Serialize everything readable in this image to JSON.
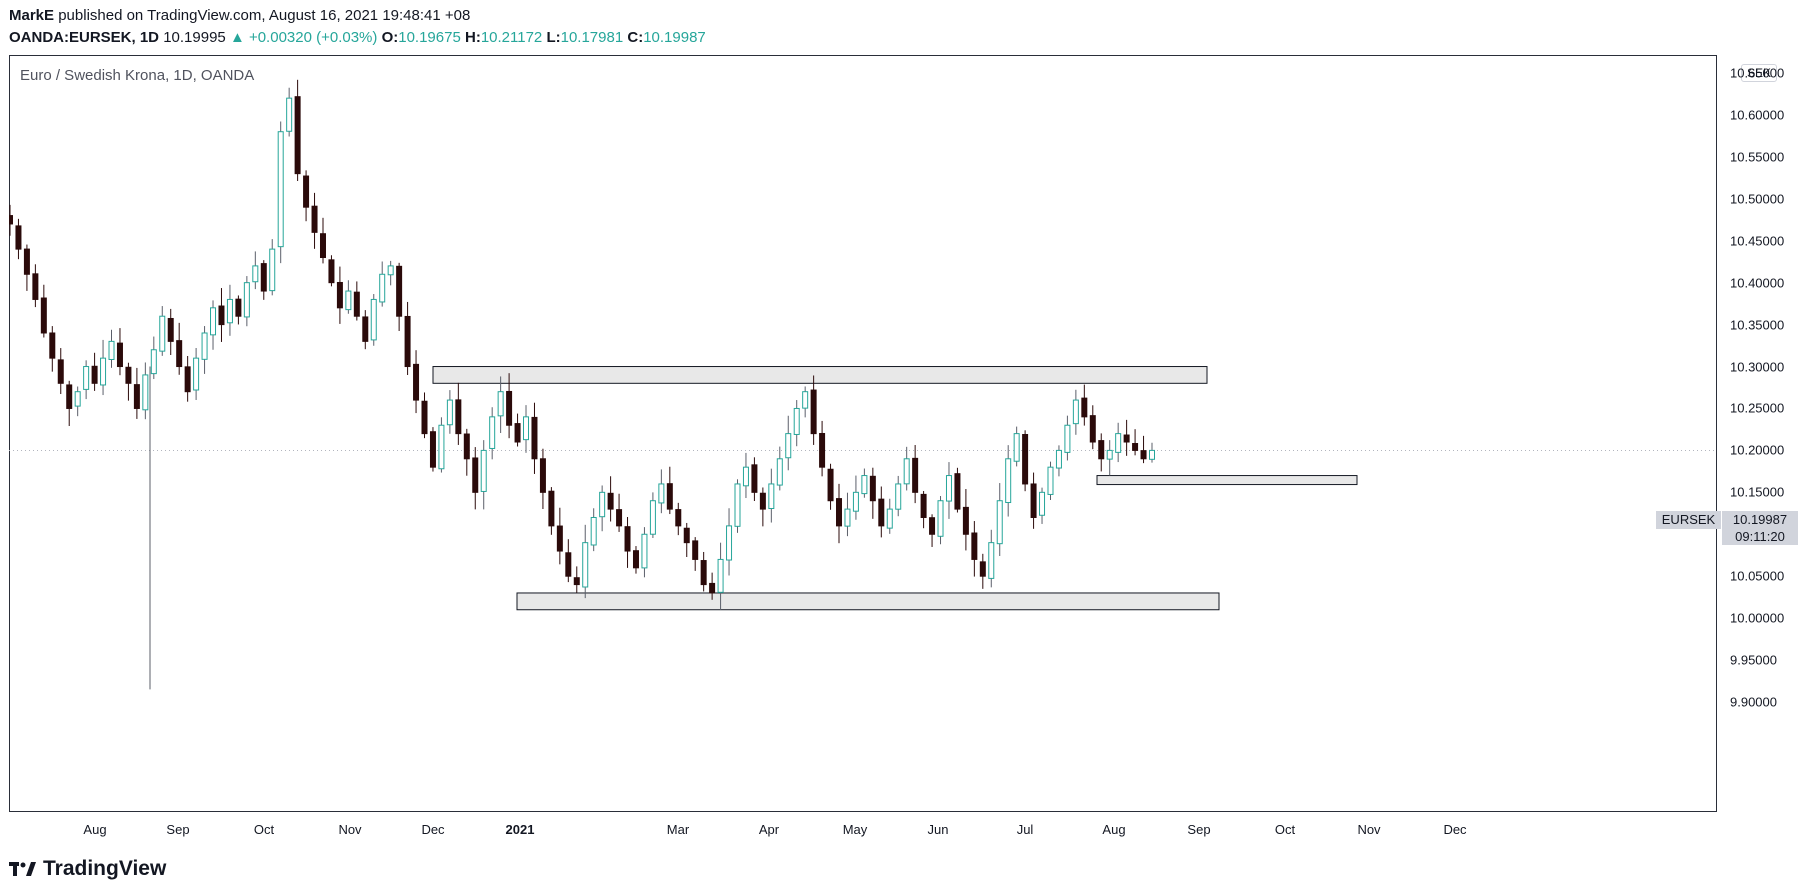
{
  "header": {
    "author": "MarkE",
    "published": "published on TradingView.com, August 16, 2021 19:48:41 +08",
    "symbol": "OANDA:EURSEK, 1D",
    "price": "10.19995",
    "change": "▲ +0.00320 (+0.03%)",
    "o_label": "O:",
    "o_val": "10.19675",
    "h_label": "H:",
    "h_val": "10.21172",
    "l_label": "L:",
    "l_val": "10.17981",
    "c_label": "C:",
    "c_val": "10.19987"
  },
  "chart_title": "Euro / Swedish Krona, 1D, OANDA",
  "currency_badge": "SEK",
  "last_price": {
    "symbol": "EURSEK",
    "value": "10.19987",
    "countdown": "09:11:20"
  },
  "brand": "TradingView",
  "colors": {
    "up": "#26a69a",
    "down": "#2b0a0a",
    "body_up": "#ffffff",
    "zone_fill": "#e8e8e8",
    "zone_border": "#131722"
  },
  "chart_data": {
    "type": "candlestick",
    "title": "Euro / Swedish Krona, 1D, OANDA",
    "ylim": [
      9.9,
      10.65
    ],
    "y_ticks": [
      "10.65000",
      "10.60000",
      "10.55000",
      "10.50000",
      "10.45000",
      "10.40000",
      "10.35000",
      "10.30000",
      "10.25000",
      "10.20000",
      "10.15000",
      "10.10000",
      "10.05000",
      "10.00000",
      "9.95000",
      "9.90000"
    ],
    "x_ticks": [
      {
        "label": "Aug",
        "bold": false
      },
      {
        "label": "Sep",
        "bold": false
      },
      {
        "label": "Oct",
        "bold": false
      },
      {
        "label": "Nov",
        "bold": false
      },
      {
        "label": "Dec",
        "bold": false
      },
      {
        "label": "2021",
        "bold": true
      },
      {
        "label": "Mar",
        "bold": false
      },
      {
        "label": "Apr",
        "bold": false
      },
      {
        "label": "May",
        "bold": false
      },
      {
        "label": "Jun",
        "bold": false
      },
      {
        "label": "Jul",
        "bold": false
      },
      {
        "label": "Aug",
        "bold": false
      },
      {
        "label": "Sep",
        "bold": false
      },
      {
        "label": "Oct",
        "bold": false
      },
      {
        "label": "Nov",
        "bold": false
      },
      {
        "label": "Dec",
        "bold": false
      }
    ],
    "closes": [
      10.47,
      10.44,
      10.41,
      10.38,
      10.34,
      10.31,
      10.28,
      10.25,
      10.27,
      10.3,
      10.28,
      10.31,
      10.33,
      10.3,
      10.28,
      10.25,
      10.29,
      10.32,
      10.36,
      10.33,
      10.3,
      10.27,
      10.31,
      10.34,
      10.37,
      10.35,
      10.38,
      10.36,
      10.4,
      10.42,
      10.39,
      10.44,
      10.58,
      10.62,
      10.53,
      10.49,
      10.46,
      10.43,
      10.4,
      10.37,
      10.39,
      10.36,
      10.33,
      10.38,
      10.41,
      10.42,
      10.36,
      10.3,
      10.26,
      10.22,
      10.18,
      10.23,
      10.26,
      10.22,
      10.19,
      10.15,
      10.2,
      10.24,
      10.27,
      10.23,
      10.21,
      10.24,
      10.19,
      10.15,
      10.11,
      10.08,
      10.05,
      10.04,
      10.09,
      10.12,
      10.15,
      10.13,
      10.11,
      10.08,
      10.06,
      10.1,
      10.14,
      10.16,
      10.13,
      10.11,
      10.09,
      10.07,
      10.04,
      10.03,
      10.07,
      10.11,
      10.16,
      10.18,
      10.15,
      10.13,
      10.16,
      10.19,
      10.22,
      10.25,
      10.27,
      10.22,
      10.18,
      10.14,
      10.11,
      10.13,
      10.15,
      10.17,
      10.14,
      10.11,
      10.13,
      10.16,
      10.19,
      10.15,
      10.12,
      10.1,
      10.14,
      10.17,
      10.13,
      10.1,
      10.07,
      10.05,
      10.09,
      10.14,
      10.19,
      10.22,
      10.16,
      10.12,
      10.15,
      10.18,
      10.2,
      10.23,
      10.26,
      10.24,
      10.21,
      10.19,
      10.2,
      10.22,
      10.21,
      10.2,
      10.19,
      10.2
    ],
    "zones": [
      {
        "from_month": "Dec 2020",
        "to_month": "Sep 2021",
        "low": 10.28,
        "high": 10.3
      },
      {
        "from_month": "Jan 2021",
        "to_month": "Sep 2021",
        "low": 10.01,
        "high": 10.03
      },
      {
        "from_month": "Jul 2021",
        "to_month": "Oct 2021",
        "low": 10.16,
        "high": 10.17
      }
    ],
    "last_price": 10.19987
  }
}
